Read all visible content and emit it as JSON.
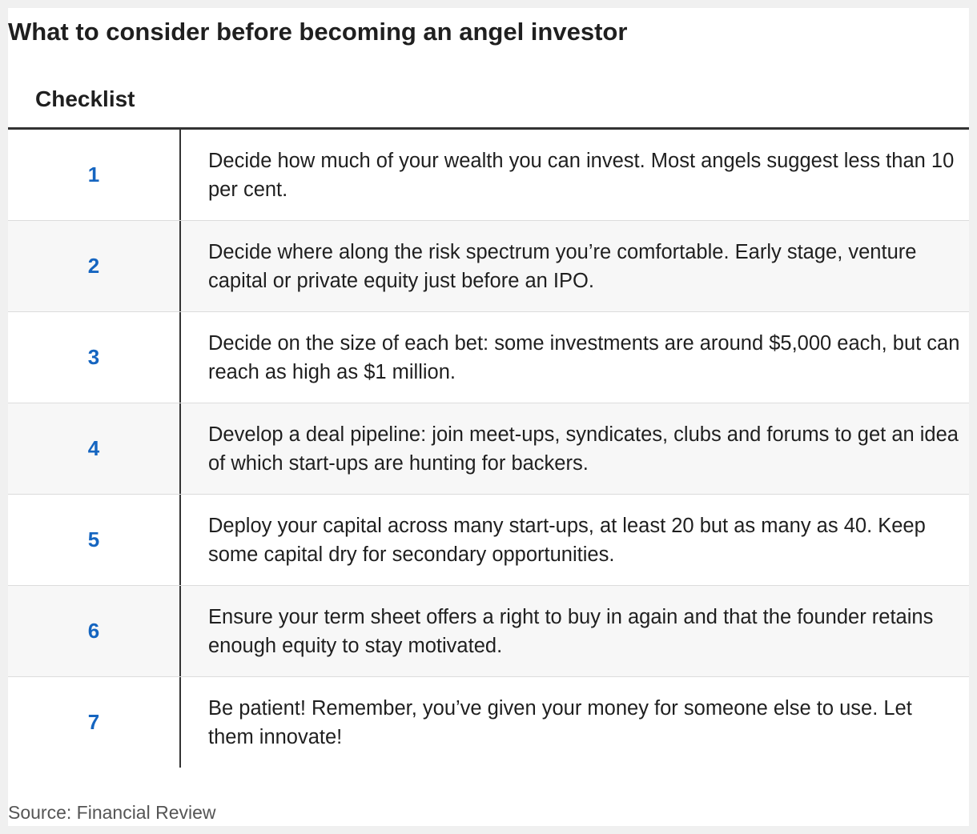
{
  "title": "What to consider before becoming an angel investor",
  "table": {
    "column_header": "Checklist",
    "rows": [
      {
        "number": "1",
        "text": "Decide how much of your wealth you can invest. Most angels suggest less than 10 per cent."
      },
      {
        "number": "2",
        "text": "Decide where along the risk spectrum you’re comfortable. Early stage, venture capital or private equity just before an IPO."
      },
      {
        "number": "3",
        "text": "Decide on the size of each bet: some investments are around $5,000 each, but can reach as high as $1 million."
      },
      {
        "number": "4",
        "text": "Develop a deal pipeline: join meet-ups, syndicates, clubs and forums to get an idea of which start-ups are hunting for backers."
      },
      {
        "number": "5",
        "text": "Deploy your capital across many start-ups, at least 20 but as many as 40. Keep some capital dry for secondary opportunities."
      },
      {
        "number": "6",
        "text": "Ensure your term sheet offers a right to buy in again and that the founder retains enough equity to stay motivated."
      },
      {
        "number": "7",
        "text": "Be patient! Remember, you’ve given your money for someone else to use. Let them innovate!"
      }
    ]
  },
  "source": "Source: Financial Review",
  "colors": {
    "number": "#1565c0",
    "text": "#1f1f1f",
    "rule": "#333333",
    "row_shade": "#f7f7f7"
  }
}
